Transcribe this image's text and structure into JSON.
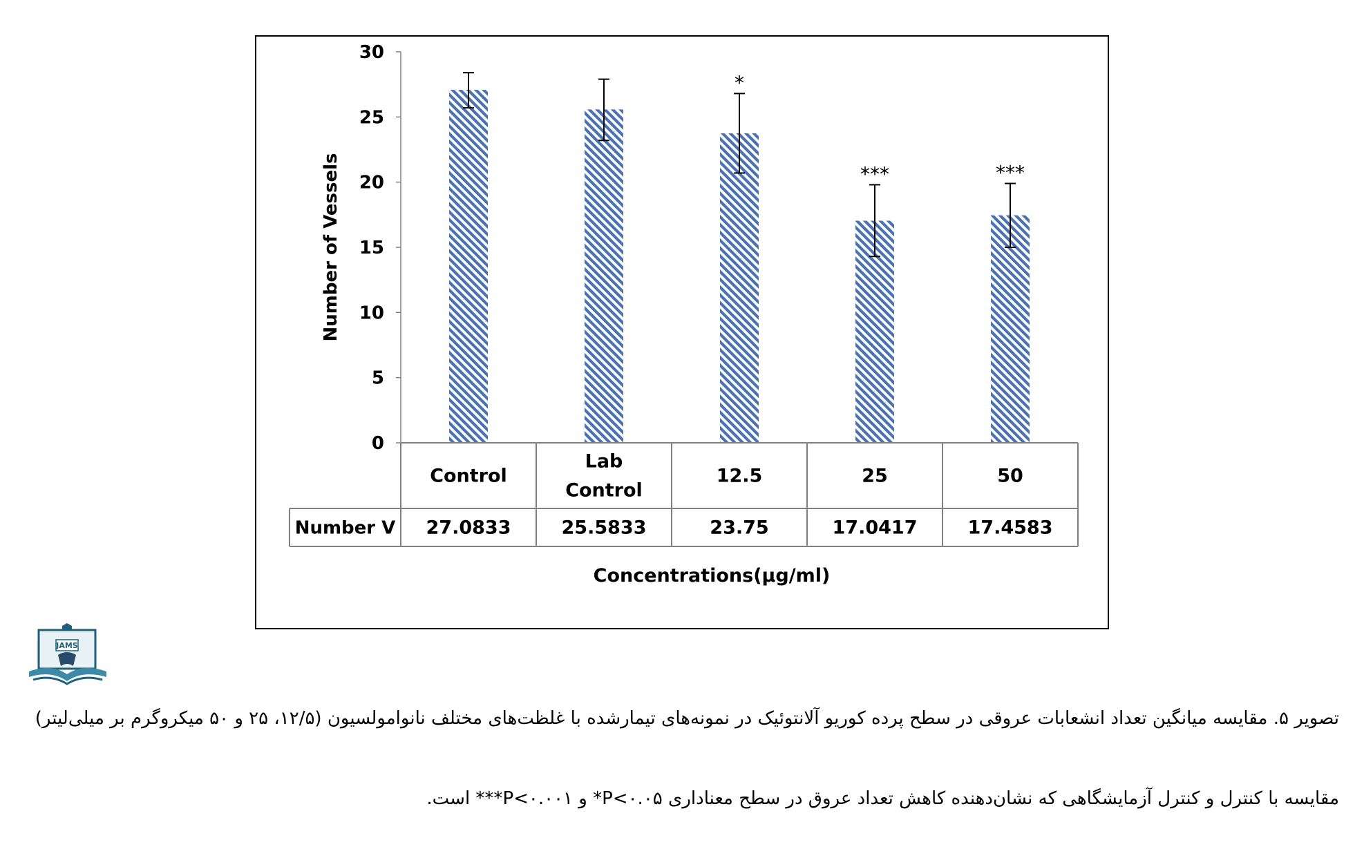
{
  "chart_data": {
    "type": "bar",
    "categories": [
      "Control",
      "Lab\nControl",
      "12.5",
      "25",
      "50"
    ],
    "values": [
      27.0833,
      25.5833,
      23.75,
      17.0417,
      17.4583
    ],
    "value_labels": [
      "27.0833",
      "25.5833",
      "23.75",
      "17.0417",
      "17.4583"
    ],
    "error_bars": [
      [
        25.7,
        28.4
      ],
      [
        23.2,
        27.9
      ],
      [
        20.7,
        26.8
      ],
      [
        14.3,
        19.8
      ],
      [
        15.0,
        19.9
      ]
    ],
    "significance": [
      "",
      "",
      "*",
      "***",
      "***"
    ],
    "ylabel": "Number of Vessels",
    "xlabel": "Concentrations(µg/ml)",
    "yticks": [
      "0",
      "5",
      "10",
      "15",
      "20",
      "25",
      "30"
    ],
    "ylim": [
      0,
      30
    ],
    "table_row_label": "Number V",
    "bar_color": "#4a72b0",
    "grid": false,
    "legend": "none"
  },
  "logo_text": "JAMS",
  "caption": {
    "line1": "تصویر ۵. مقایسه میانگین تعداد انشعابات عروقی در سطح پرده کوریو آلانتوئیک در نمونه‌های تیمارشده با غلظت‌های مختلف نانوامولسیون (۱۲/۵، ۲۵ و ۵۰ میکروگرم بر میلی‌لیتر)",
    "line2": "مقایسه با کنترل و کنترل آزمایشگاهی که نشان‌دهنده کاهش تعداد عروق در سطح معناداری P<۰.۰۵* و P<۰.۰۰۱*** است."
  }
}
